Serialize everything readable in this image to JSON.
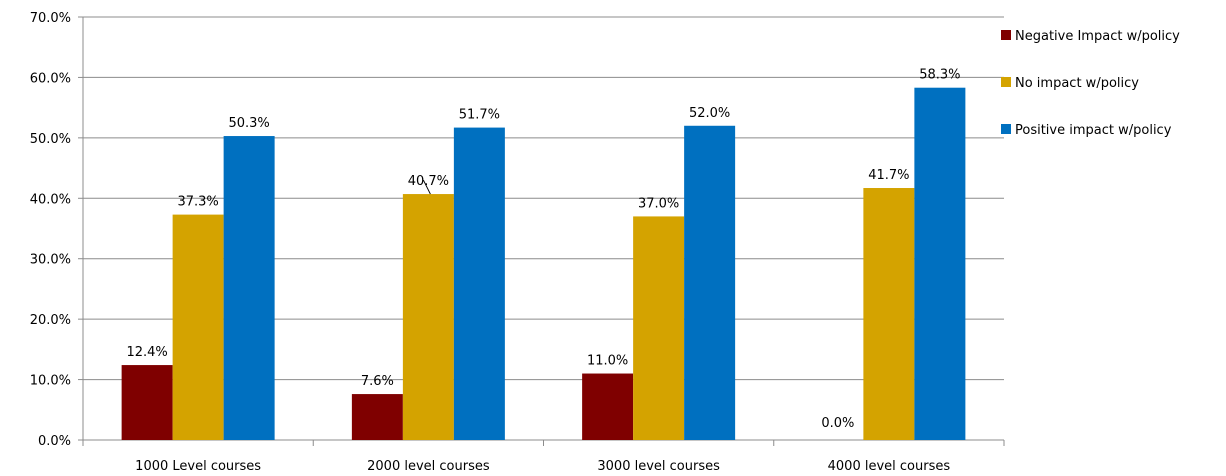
{
  "chart_data": {
    "type": "bar",
    "title": "",
    "xlabel": "",
    "ylabel": "",
    "ylim": [
      0,
      70
    ],
    "ytick_step": 10,
    "ytick_format": "percent_1dp",
    "grid": true,
    "legend_position": "right",
    "categories": [
      "1000 Level courses",
      "2000 level courses",
      "3000 level courses",
      "4000 level courses"
    ],
    "series": [
      {
        "name": "Negative Impact w/policy",
        "color": "#7f0000",
        "values": [
          12.4,
          7.6,
          11.0,
          0.0
        ],
        "labels": [
          "12.4%",
          "7.6%",
          "11.0%",
          "0.0%"
        ]
      },
      {
        "name": "No impact w/policy",
        "color": "#d4a300",
        "values": [
          37.3,
          40.7,
          37.0,
          41.7
        ],
        "labels": [
          "37.3%",
          "40.7%",
          "37.0%",
          "41.7%"
        ]
      },
      {
        "name": "Positive impact w/policy",
        "color": "#0070c0",
        "values": [
          50.3,
          51.7,
          52.0,
          58.3
        ],
        "labels": [
          "50.3%",
          "51.7%",
          "52.0%",
          "58.3%"
        ]
      }
    ]
  }
}
